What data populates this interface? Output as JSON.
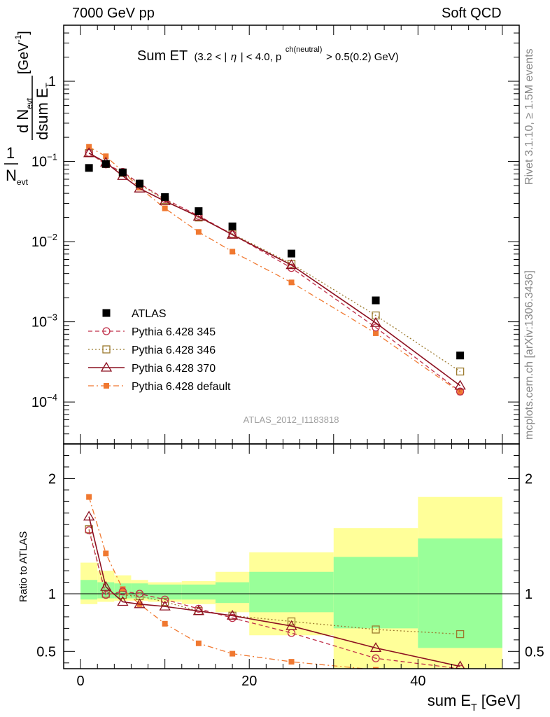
{
  "header": {
    "left": "7000 GeV pp",
    "right": "Soft QCD"
  },
  "plot_title": {
    "main": "Sum ET",
    "cond_1": "(3.2 < |",
    "cond_eta": "η",
    "cond_2": "| < 4.0, p",
    "cond_sup": "ch(neutral)",
    "cond_3": " > 0.5(0.2) GeV)"
  },
  "analysis_label": "ATLAS_2012_I1183818",
  "side_labels": {
    "rivet": "Rivet 3.1.10, ≥ 1.5M events",
    "mcplots": "mcplots.cern.ch [arXiv:1306.3436]"
  },
  "ylabel_main": {
    "frac_num": "1",
    "frac_den": "N",
    "frac_den_sub": "evt",
    "d_num": "d N",
    "d_num_sub": "evt",
    "d_den": "dsum E",
    "d_den_sub": "T",
    "unit": "[GeV",
    "unit_sup": "-1",
    "unit_close": "]"
  },
  "ylabel_ratio": "Ratio to ATLAS",
  "xlabel": {
    "text": "sum E",
    "sub": "T",
    "unit": " [GeV]"
  },
  "colors": {
    "atlas": "#000000",
    "p345": "#c0304a",
    "p346": "#9b7a2e",
    "p370": "#8c1020",
    "pdef": "#f07830",
    "band_inner": "#99ff99",
    "band_outer": "#ffff99"
  },
  "chart_data": {
    "type": "scatter",
    "x_range": [
      -2,
      52
    ],
    "main": {
      "ylim": [
        3e-05,
        5
      ],
      "log_y": true,
      "y_ticks": [
        {
          "value": 1,
          "label": "1",
          "sup": ""
        },
        {
          "value": 0.1,
          "label": "10",
          "sup": "−1"
        },
        {
          "value": 0.01,
          "label": "10",
          "sup": "−2"
        },
        {
          "value": 0.001,
          "label": "10",
          "sup": "−3"
        },
        {
          "value": 0.0001,
          "label": "10",
          "sup": "−4"
        }
      ]
    },
    "ratio": {
      "ylim": [
        0.35,
        2.3
      ],
      "y_ticks": [
        {
          "value": 0.5,
          "label": "0.5"
        },
        {
          "value": 1,
          "label": "1"
        },
        {
          "value": 2,
          "label": "2"
        }
      ]
    },
    "x_ticks": [
      {
        "value": 0,
        "label": "0"
      },
      {
        "value": 20,
        "label": "20"
      },
      {
        "value": 40,
        "label": "40"
      }
    ],
    "bins": [
      {
        "lo": 0,
        "hi": 2,
        "inner": [
          0.95,
          1.12
        ],
        "outer": [
          0.91,
          1.27
        ]
      },
      {
        "lo": 2,
        "hi": 4,
        "inner": [
          0.96,
          1.1
        ],
        "outer": [
          0.93,
          1.2
        ]
      },
      {
        "lo": 4,
        "hi": 6,
        "inner": [
          0.96,
          1.09
        ],
        "outer": [
          0.94,
          1.16
        ]
      },
      {
        "lo": 6,
        "hi": 8,
        "inner": [
          0.96,
          1.09
        ],
        "outer": [
          0.94,
          1.12
        ]
      },
      {
        "lo": 8,
        "hi": 12,
        "inner": [
          0.95,
          1.08
        ],
        "outer": [
          0.93,
          1.1
        ]
      },
      {
        "lo": 12,
        "hi": 16,
        "inner": [
          0.95,
          1.08
        ],
        "outer": [
          0.91,
          1.11
        ]
      },
      {
        "lo": 16,
        "hi": 20,
        "inner": [
          0.92,
          1.1
        ],
        "outer": [
          0.84,
          1.19
        ]
      },
      {
        "lo": 20,
        "hi": 30,
        "inner": [
          0.84,
          1.19
        ],
        "outer": [
          0.64,
          1.36
        ]
      },
      {
        "lo": 30,
        "hi": 40,
        "inner": [
          0.7,
          1.32
        ],
        "outer": [
          0.35,
          1.57
        ]
      },
      {
        "lo": 40,
        "hi": 50,
        "inner": [
          0.53,
          1.48
        ],
        "outer": [
          0.35,
          1.84
        ]
      }
    ],
    "series": [
      {
        "name": "ATLAS",
        "key": "atlas",
        "x": [
          1,
          3,
          5,
          7,
          10,
          14,
          18,
          25,
          35,
          45
        ],
        "y": [
          0.083,
          0.093,
          0.073,
          0.053,
          0.036,
          0.024,
          0.0155,
          0.0071,
          0.00185,
          0.00038
        ],
        "ratio": [
          1,
          1,
          1,
          1,
          1,
          1,
          1,
          1,
          1,
          1
        ]
      },
      {
        "name": "Pythia 6.428 345",
        "key": "p345",
        "x": [
          1,
          3,
          5,
          7,
          10,
          14,
          18,
          25,
          35,
          45
        ],
        "y": [
          0.128,
          0.092,
          0.074,
          0.053,
          0.034,
          0.021,
          0.0123,
          0.0047,
          0.00085,
          0.000135
        ],
        "ratio": [
          1.55,
          0.99,
          1.02,
          1.0,
          0.95,
          0.87,
          0.79,
          0.66,
          0.44,
          0.35
        ]
      },
      {
        "name": "Pythia 6.428 346",
        "key": "p346",
        "x": [
          1,
          3,
          5,
          7,
          10,
          14,
          18,
          25,
          35,
          45
        ],
        "y": [
          0.127,
          0.093,
          0.072,
          0.052,
          0.033,
          0.02,
          0.0125,
          0.0053,
          0.0012,
          0.00024
        ],
        "ratio": [
          1.56,
          1.0,
          0.99,
          0.98,
          0.93,
          0.85,
          0.81,
          0.76,
          0.69,
          0.65
        ]
      },
      {
        "name": "Pythia 6.428 370",
        "key": "p370",
        "x": [
          1,
          3,
          5,
          7,
          10,
          14,
          18,
          25,
          35,
          45
        ],
        "y": [
          0.127,
          0.097,
          0.066,
          0.046,
          0.032,
          0.0205,
          0.0122,
          0.0051,
          0.00097,
          0.00016
        ],
        "ratio": [
          1.67,
          1.06,
          0.93,
          0.91,
          0.89,
          0.85,
          0.81,
          0.72,
          0.53,
          0.37
        ]
      },
      {
        "name": "Pythia 6.428 default",
        "key": "pdef",
        "x": [
          1,
          3,
          5,
          7,
          10,
          14,
          18,
          25,
          35,
          45
        ],
        "y": [
          0.152,
          0.116,
          0.075,
          0.047,
          0.026,
          0.0132,
          0.0075,
          0.0031,
          0.00072,
          0.000132
        ],
        "ratio": [
          1.84,
          1.35,
          1.04,
          0.91,
          0.74,
          0.57,
          0.48,
          0.41,
          0.34,
          0.3
        ]
      }
    ]
  }
}
